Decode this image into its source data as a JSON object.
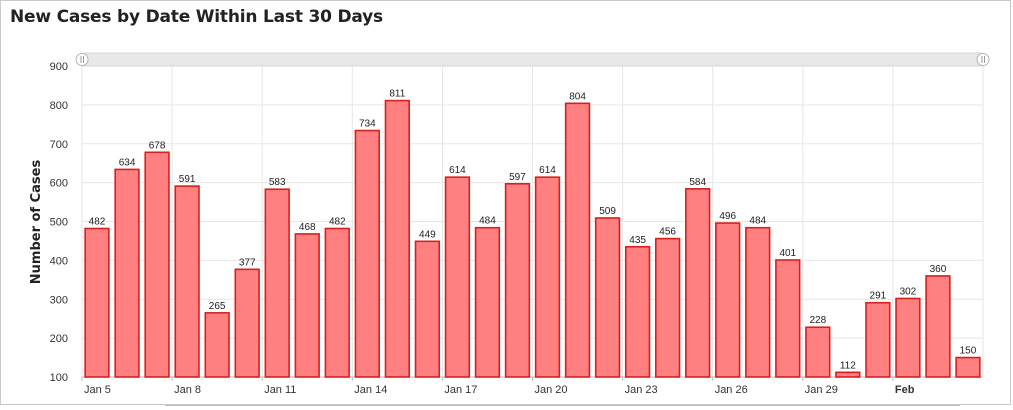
{
  "chart_data": {
    "type": "bar",
    "title": "New Cases by Date Within Last 30 Days",
    "ylabel": "Number of Cases",
    "xlabel": "",
    "ylim": [
      100,
      900
    ],
    "yticks": [
      100,
      200,
      300,
      400,
      500,
      600,
      700,
      800,
      900
    ],
    "grid": true,
    "categories": [
      "Jan 5",
      "Jan 6",
      "Jan 7",
      "Jan 8",
      "Jan 9",
      "Jan 10",
      "Jan 11",
      "Jan 12",
      "Jan 13",
      "Jan 14",
      "Jan 15",
      "Jan 16",
      "Jan 17",
      "Jan 18",
      "Jan 19",
      "Jan 20",
      "Jan 21",
      "Jan 22",
      "Jan 23",
      "Jan 24",
      "Jan 25",
      "Jan 26",
      "Jan 27",
      "Jan 28",
      "Jan 29",
      "Jan 30",
      "Jan 31",
      "Feb 1",
      "Feb 2",
      "Feb 3"
    ],
    "values": [
      482,
      634,
      678,
      591,
      265,
      377,
      583,
      468,
      482,
      734,
      811,
      449,
      614,
      484,
      597,
      614,
      804,
      509,
      435,
      456,
      584,
      496,
      484,
      401,
      228,
      112,
      291,
      302,
      360,
      150
    ],
    "x_tick_labels": [
      {
        "index": 0,
        "label": "Jan 5",
        "bold": false
      },
      {
        "index": 3,
        "label": "Jan 8",
        "bold": false
      },
      {
        "index": 6,
        "label": "Jan 11",
        "bold": false
      },
      {
        "index": 9,
        "label": "Jan 14",
        "bold": false
      },
      {
        "index": 12,
        "label": "Jan 17",
        "bold": false
      },
      {
        "index": 15,
        "label": "Jan 20",
        "bold": false
      },
      {
        "index": 18,
        "label": "Jan 23",
        "bold": false
      },
      {
        "index": 21,
        "label": "Jan 26",
        "bold": false
      },
      {
        "index": 24,
        "label": "Jan 29",
        "bold": false
      },
      {
        "index": 27,
        "label": "Feb",
        "bold": true
      }
    ],
    "colors": {
      "bar_fill": "#ff8080",
      "bar_stroke": "#d91e1e",
      "grid": "#e6e6e6"
    }
  }
}
